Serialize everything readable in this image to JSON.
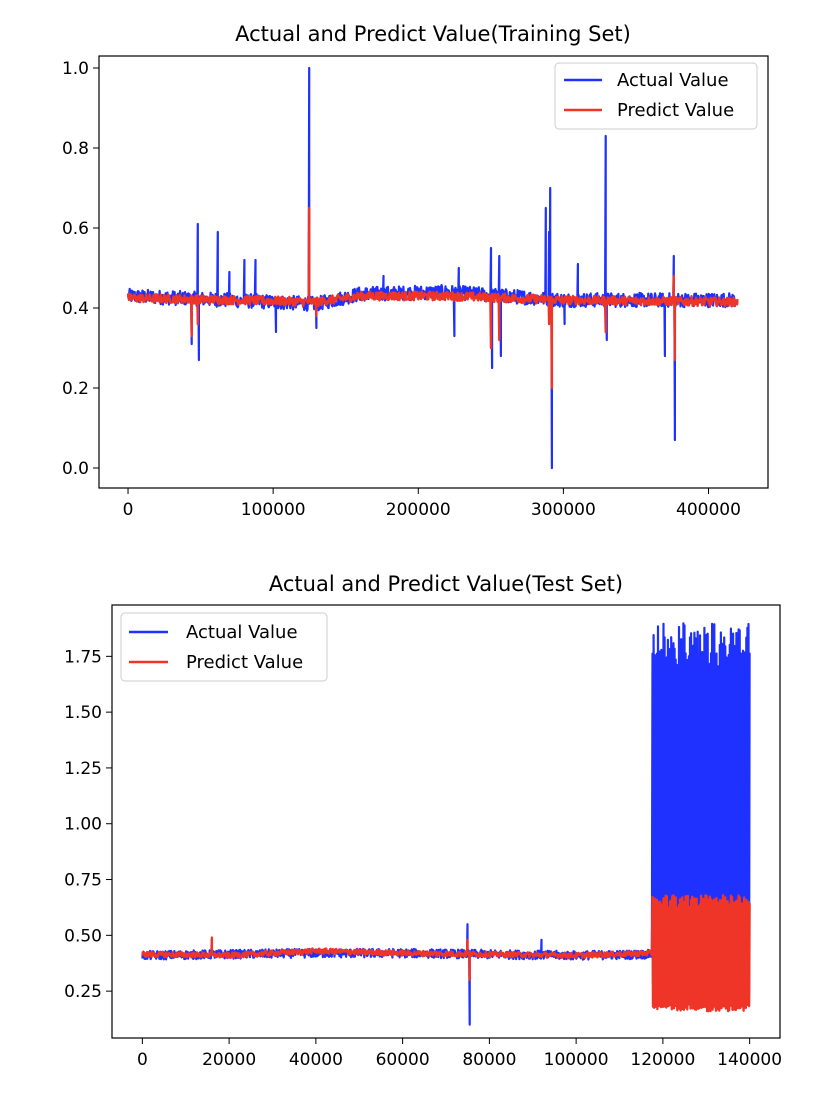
{
  "colors": {
    "actual": "#1f31ff",
    "predict": "#ee3528"
  },
  "chart_data": [
    {
      "type": "line",
      "title": "Actual and Predict Value(Training Set)",
      "xlim": [
        -20000,
        441000
      ],
      "ylim": [
        -0.05,
        1.03
      ],
      "xticks": [
        0,
        100000,
        200000,
        300000,
        400000
      ],
      "xtick_labels": [
        "0",
        "100000",
        "200000",
        "300000",
        "400000"
      ],
      "yticks": [
        0.0,
        0.2,
        0.4,
        0.6,
        0.8,
        1.0
      ],
      "ytick_labels": [
        "0.0",
        "0.2",
        "0.4",
        "0.6",
        "0.8",
        "1.0"
      ],
      "legend": {
        "position": "upper right",
        "entries": [
          "Actual Value",
          "Predict Value"
        ]
      },
      "x_max": 420000,
      "series": [
        {
          "name": "Actual Value",
          "baseline": [
            [
              0,
              0.43
            ],
            [
              100000,
              0.415
            ],
            [
              130000,
              0.41
            ],
            [
              160000,
              0.435
            ],
            [
              220000,
              0.44
            ],
            [
              300000,
              0.42
            ],
            [
              420000,
              0.42
            ]
          ],
          "band": 0.018,
          "spikes": [
            [
              44000,
              0.31
            ],
            [
              48000,
              0.61
            ],
            [
              49000,
              0.27
            ],
            [
              62000,
              0.59
            ],
            [
              70000,
              0.49
            ],
            [
              80000,
              0.52
            ],
            [
              88000,
              0.52
            ],
            [
              102000,
              0.34
            ],
            [
              125000,
              1.0
            ],
            [
              130000,
              0.35
            ],
            [
              176000,
              0.48
            ],
            [
              225000,
              0.33
            ],
            [
              228000,
              0.5
            ],
            [
              250000,
              0.55
            ],
            [
              251000,
              0.25
            ],
            [
              256000,
              0.53
            ],
            [
              257000,
              0.28
            ],
            [
              288000,
              0.65
            ],
            [
              290000,
              0.59
            ],
            [
              291000,
              0.7
            ],
            [
              292000,
              0.0
            ],
            [
              301000,
              0.36
            ],
            [
              310000,
              0.51
            ],
            [
              329000,
              0.83
            ],
            [
              330000,
              0.32
            ],
            [
              370000,
              0.28
            ],
            [
              376000,
              0.53
            ],
            [
              377000,
              0.07
            ]
          ]
        },
        {
          "name": "Predict Value",
          "baseline": [
            [
              0,
              0.425
            ],
            [
              100000,
              0.418
            ],
            [
              130000,
              0.415
            ],
            [
              160000,
              0.43
            ],
            [
              220000,
              0.43
            ],
            [
              300000,
              0.42
            ],
            [
              420000,
              0.415
            ]
          ],
          "band": 0.011,
          "spikes": [
            [
              44000,
              0.33
            ],
            [
              48000,
              0.36
            ],
            [
              125000,
              0.65
            ],
            [
              130000,
              0.38
            ],
            [
              250000,
              0.3
            ],
            [
              256000,
              0.32
            ],
            [
              290000,
              0.36
            ],
            [
              292000,
              0.2
            ],
            [
              329000,
              0.34
            ],
            [
              376000,
              0.48
            ],
            [
              377000,
              0.27
            ]
          ]
        }
      ]
    },
    {
      "type": "line",
      "title": "Actual and Predict Value(Test Set)",
      "xlim": [
        -7000,
        147000
      ],
      "ylim": [
        0.04,
        1.98
      ],
      "xticks": [
        0,
        20000,
        40000,
        60000,
        80000,
        100000,
        120000,
        140000
      ],
      "xtick_labels": [
        "0",
        "20000",
        "40000",
        "60000",
        "80000",
        "100000",
        "120000",
        "140000"
      ],
      "yticks": [
        0.25,
        0.5,
        0.75,
        1.0,
        1.25,
        1.5,
        1.75
      ],
      "ytick_labels": [
        "0.25",
        "0.50",
        "0.75",
        "1.00",
        "1.25",
        "1.50",
        "1.75"
      ],
      "legend": {
        "position": "upper left",
        "entries": [
          "Actual Value",
          "Predict Value"
        ]
      },
      "x_max": 140000,
      "regime_change_x": 117500,
      "series": [
        {
          "name": "Actual Value",
          "baseline": [
            [
              0,
              0.41
            ],
            [
              20000,
              0.415
            ],
            [
              40000,
              0.42
            ],
            [
              60000,
              0.42
            ],
            [
              100000,
              0.41
            ],
            [
              117000,
              0.415
            ]
          ],
          "band": 0.02,
          "spikes": [
            [
              16000,
              0.48
            ],
            [
              75000,
              0.55
            ],
            [
              75500,
              0.1
            ],
            [
              92000,
              0.48
            ]
          ],
          "oscillation": {
            "x_start": 117500,
            "x_end": 140000,
            "high": 1.9,
            "low": 0.22
          }
        },
        {
          "name": "Predict Value",
          "baseline": [
            [
              0,
              0.415
            ],
            [
              20000,
              0.41
            ],
            [
              40000,
              0.43
            ],
            [
              60000,
              0.42
            ],
            [
              100000,
              0.41
            ],
            [
              117000,
              0.42
            ]
          ],
          "band": 0.012,
          "spikes": [
            [
              16000,
              0.49
            ],
            [
              75000,
              0.48
            ],
            [
              75500,
              0.3
            ]
          ],
          "oscillation": {
            "x_start": 117500,
            "x_end": 140000,
            "high": 0.68,
            "low": 0.16
          }
        }
      ]
    }
  ]
}
